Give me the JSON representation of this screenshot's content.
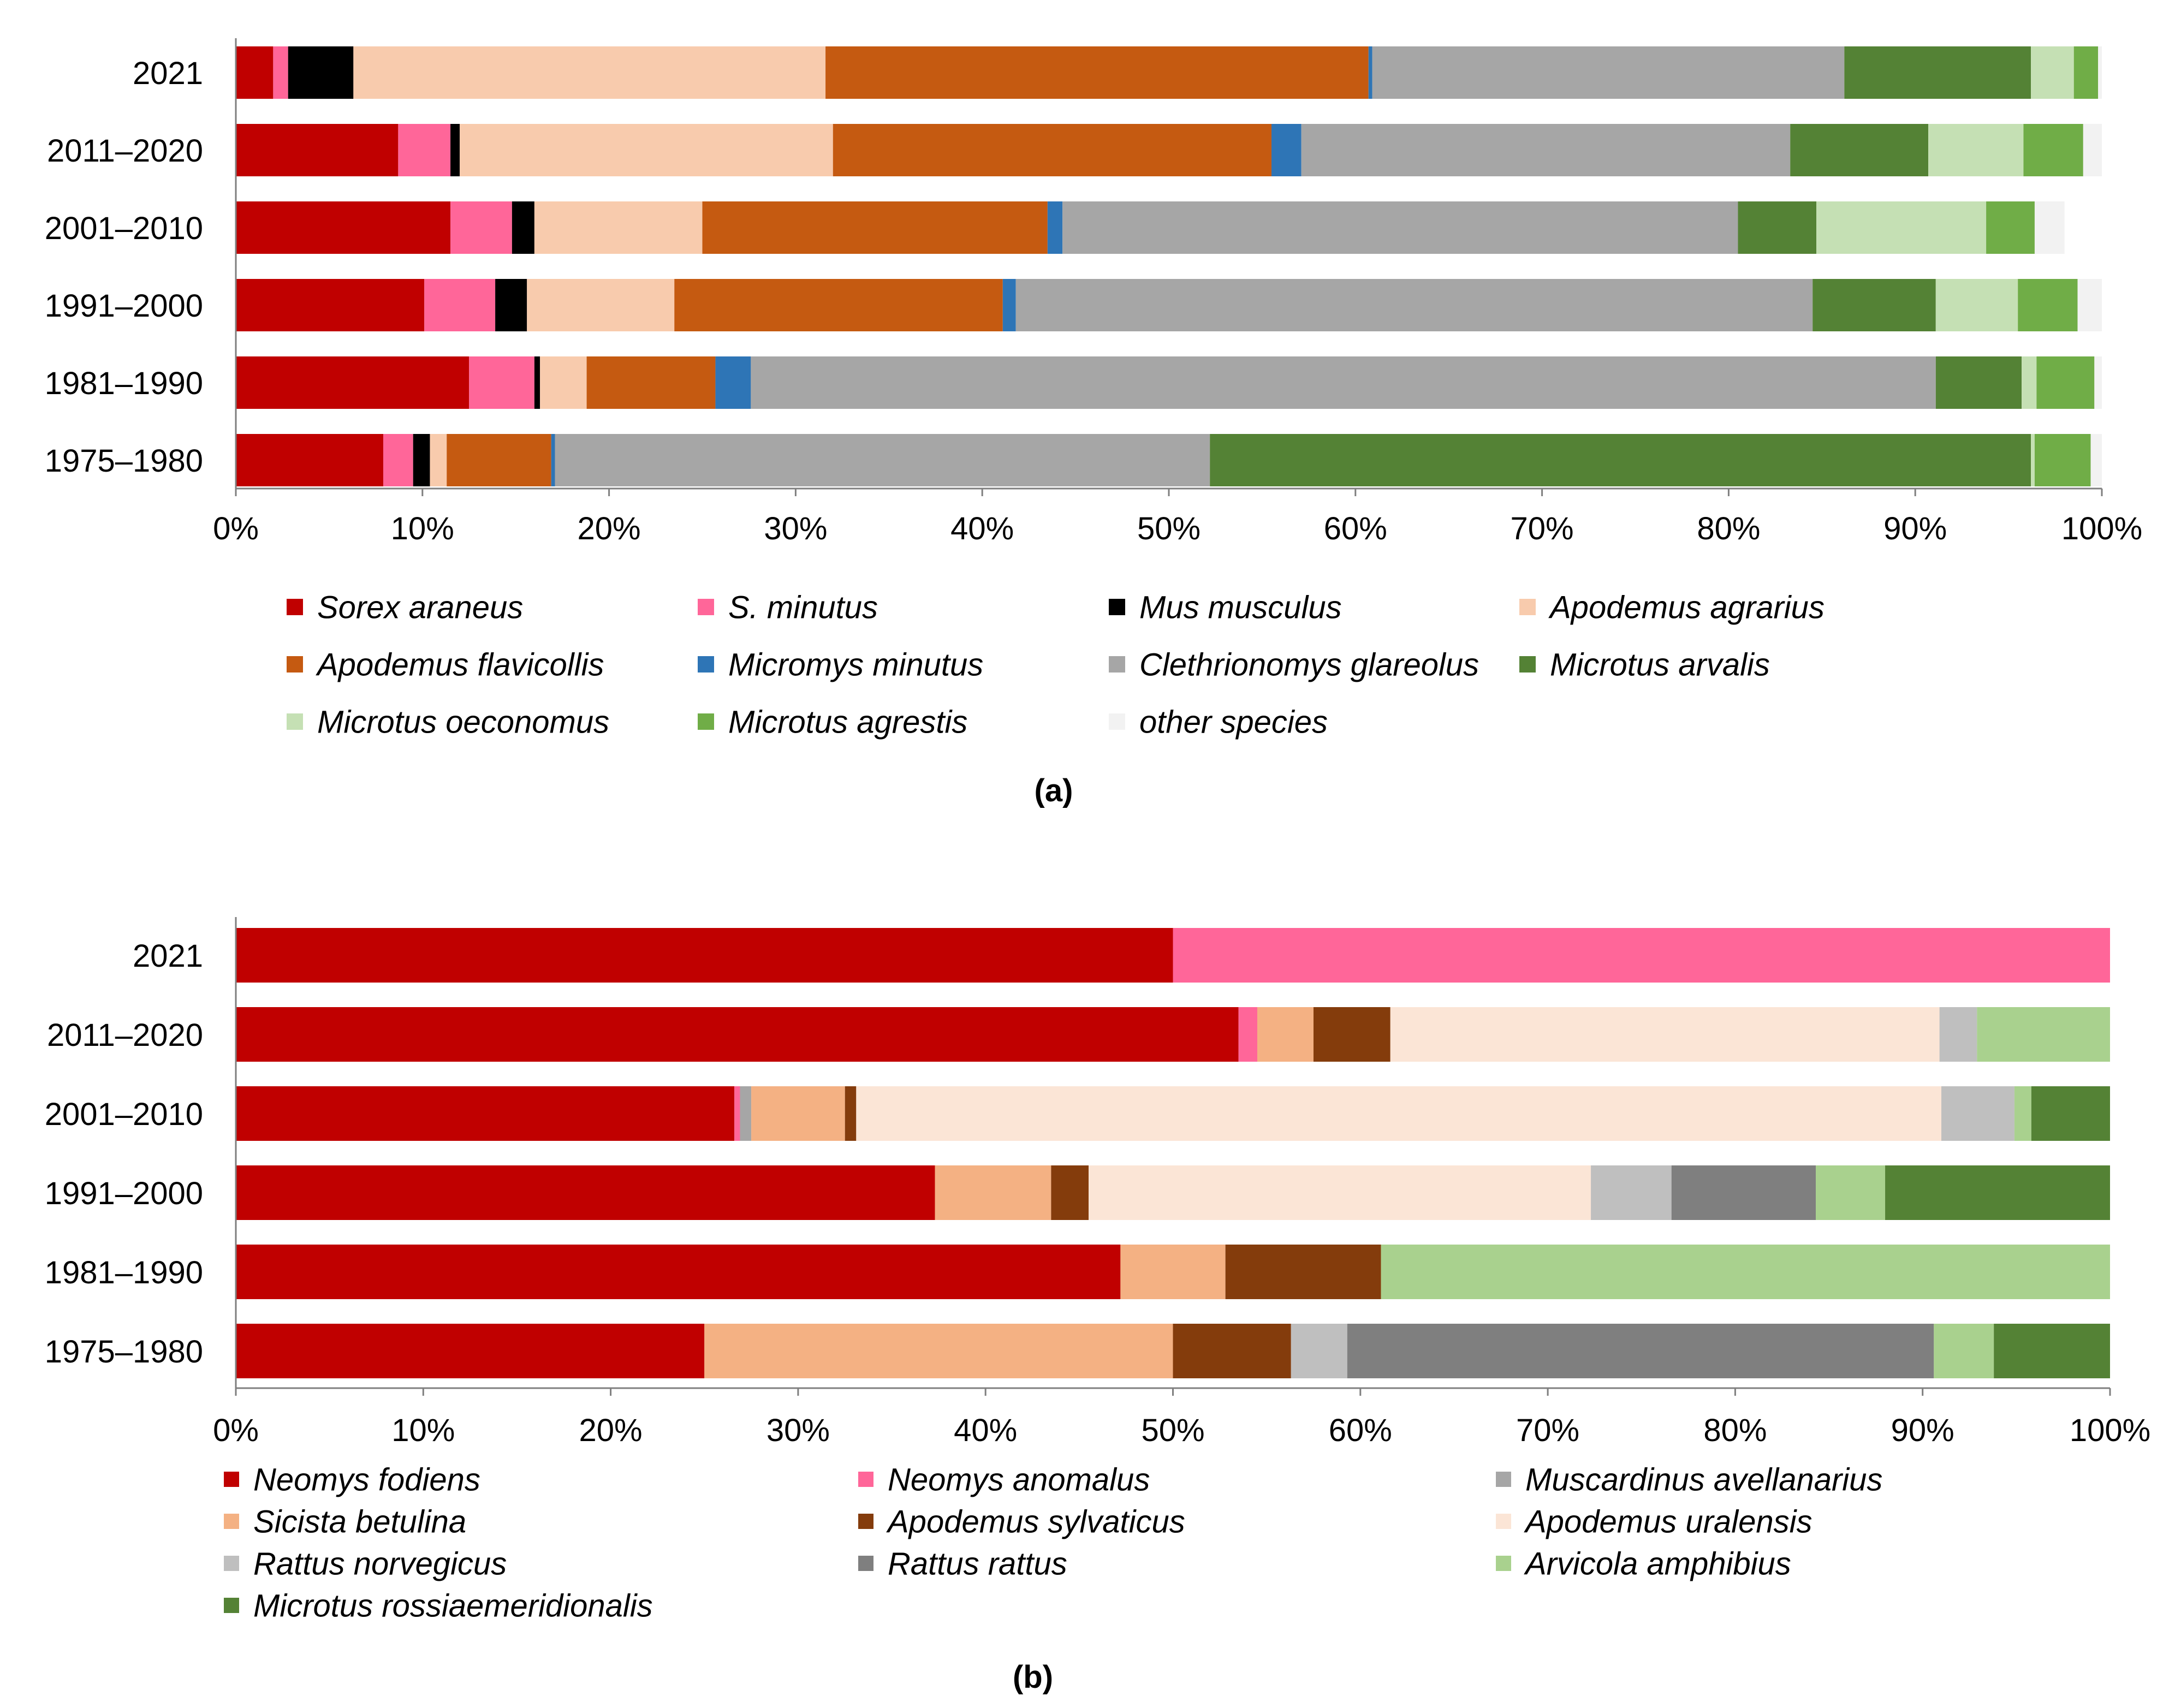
{
  "figure": {
    "panel_a_label": "(a)",
    "panel_b_label": "(b)"
  },
  "chart_data": [
    {
      "type": "bar",
      "orientation": "horizontal",
      "stacked": true,
      "panel": "a",
      "categories": [
        "2021",
        "2011–2020",
        "2001–2010",
        "1991–2000",
        "1981–1990",
        "1975–1980"
      ],
      "xlim": [
        0,
        100
      ],
      "xticks": [
        "0%",
        "10%",
        "20%",
        "30%",
        "40%",
        "50%",
        "60%",
        "70%",
        "80%",
        "90%",
        "100%"
      ],
      "legend_position": "bottom",
      "series": [
        {
          "name": "Sorex araneus",
          "color": "#C00000",
          "values": [
            2.0,
            8.7,
            11.5,
            10.1,
            12.5,
            7.9
          ]
        },
        {
          "name": "S. minutus",
          "color": "#FF6699",
          "values": [
            0.8,
            2.8,
            3.3,
            3.8,
            3.5,
            1.6
          ]
        },
        {
          "name": "Mus musculus",
          "color": "#000000",
          "values": [
            3.5,
            0.5,
            1.2,
            1.7,
            0.3,
            0.9
          ]
        },
        {
          "name": "Apodemus agrarius",
          "color": "#F8CBAD",
          "values": [
            25.3,
            20.0,
            9.0,
            7.9,
            2.5,
            0.9
          ]
        },
        {
          "name": "Apodemus flavicollis",
          "color": "#C55A11",
          "values": [
            29.1,
            23.5,
            18.5,
            17.6,
            6.9,
            5.6
          ]
        },
        {
          "name": "Micromys minutus",
          "color": "#2E75B6",
          "values": [
            0.2,
            1.6,
            0.8,
            0.7,
            1.9,
            0.2
          ]
        },
        {
          "name": "Clethrionomys glareolus",
          "color": "#A6A6A6",
          "values": [
            25.3,
            26.2,
            36.2,
            42.7,
            63.5,
            35.1
          ]
        },
        {
          "name": "Microtus arvalis",
          "color": "#548235",
          "values": [
            10.0,
            7.4,
            4.2,
            6.6,
            4.6,
            44.0
          ]
        },
        {
          "name": "Microtus oeconomus",
          "color": "#C5E0B4",
          "values": [
            2.3,
            5.1,
            9.1,
            4.4,
            0.8,
            0.2
          ]
        },
        {
          "name": "Microtus agrestis",
          "color": "#70AD47",
          "values": [
            1.3,
            3.2,
            2.6,
            3.2,
            3.1,
            3.0
          ]
        },
        {
          "name": "other species",
          "color": "#F2F2F2",
          "values": [
            0.2,
            1.0,
            1.6,
            1.3,
            0.4,
            0.6
          ]
        }
      ]
    },
    {
      "type": "bar",
      "orientation": "horizontal",
      "stacked": true,
      "panel": "b",
      "categories": [
        "2021",
        "2011–2020",
        "2001–2010",
        "1991–2000",
        "1981–1990",
        "1975–1980"
      ],
      "xlim": [
        0,
        100
      ],
      "xticks": [
        "0%",
        "10%",
        "20%",
        "30%",
        "40%",
        "50%",
        "60%",
        "70%",
        "80%",
        "90%",
        "100%"
      ],
      "legend_position": "bottom",
      "series": [
        {
          "name": "Neomys fodiens",
          "color": "#C00000",
          "values": [
            50.0,
            53.5,
            26.6,
            37.3,
            47.2,
            25.0
          ]
        },
        {
          "name": "Neomys anomalus",
          "color": "#FF6699",
          "values": [
            50.0,
            1.0,
            0.3,
            0,
            0,
            0
          ]
        },
        {
          "name": "Muscardinus avellanarius",
          "color": "#A6A6A6",
          "values": [
            0,
            0,
            0.6,
            0,
            0,
            0
          ]
        },
        {
          "name": "Sicista betulina",
          "color": "#F4B183",
          "values": [
            0,
            3.0,
            5.0,
            6.2,
            5.6,
            25.0
          ]
        },
        {
          "name": "Apodemus sylvaticus",
          "color": "#843C0C",
          "values": [
            0,
            4.1,
            0.6,
            2.0,
            8.3,
            6.3
          ]
        },
        {
          "name": "Apodemus uralensis",
          "color": "#FBE5D6",
          "values": [
            0,
            29.3,
            57.9,
            26.8,
            0,
            0
          ]
        },
        {
          "name": "Rattus norvegicus",
          "color": "#BFBFBF",
          "values": [
            0,
            2.0,
            3.9,
            4.3,
            0,
            3.0
          ]
        },
        {
          "name": "Rattus rattus",
          "color": "#7F7F7F",
          "values": [
            0,
            0,
            0,
            7.7,
            0,
            31.3
          ]
        },
        {
          "name": "Arvicola amphibius",
          "color": "#A9D18E",
          "values": [
            0,
            7.1,
            0.9,
            3.7,
            38.9,
            3.2
          ]
        },
        {
          "name": "Microtus rossiaemeridionalis",
          "color": "#548235",
          "values": [
            0,
            0,
            4.2,
            12.0,
            0,
            6.2
          ]
        }
      ]
    }
  ]
}
